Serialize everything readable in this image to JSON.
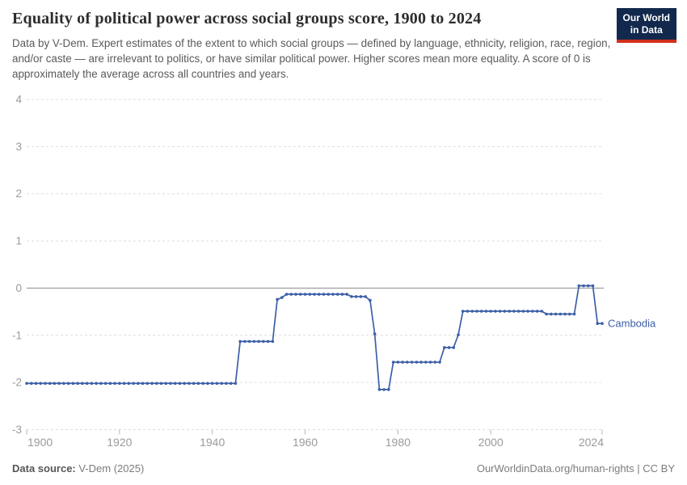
{
  "header": {
    "title": "Equality of political power across social groups score, 1900 to 2024",
    "subtitle": "Data by V-Dem. Expert estimates of the extent to which social groups — defined by language, ethnicity, religion, race, region, and/or caste — are irrelevant to politics, or have similar political power. Higher scores mean more equality. A score of 0 is approximately the average across all countries and years.",
    "logo": {
      "line1": "Our World",
      "line2": "in Data"
    }
  },
  "chart_data": {
    "type": "line",
    "title": "Equality of political power across social groups score, 1900 to 2024",
    "xlabel": "",
    "ylabel": "",
    "xlim": [
      1900,
      2024
    ],
    "ylim": [
      -3,
      4
    ],
    "xticks": [
      1900,
      1920,
      1940,
      1960,
      1980,
      2000,
      2024
    ],
    "yticks": [
      4,
      3,
      2,
      1,
      0,
      -1,
      -2,
      -3
    ],
    "grid": "horizontal dashed gridlines, solid line at 0",
    "legend": "entity label at end of line",
    "line_color": "#3c5fa7",
    "axis_text_color": "#9b9b9b",
    "series": [
      {
        "name": "Cambodia",
        "x_start": 1900,
        "x_step": 1,
        "values": [
          -2.02,
          -2.02,
          -2.02,
          -2.02,
          -2.02,
          -2.02,
          -2.02,
          -2.02,
          -2.02,
          -2.02,
          -2.02,
          -2.02,
          -2.02,
          -2.02,
          -2.02,
          -2.02,
          -2.02,
          -2.02,
          -2.02,
          -2.02,
          -2.02,
          -2.02,
          -2.02,
          -2.02,
          -2.02,
          -2.02,
          -2.02,
          -2.02,
          -2.02,
          -2.02,
          -2.02,
          -2.02,
          -2.02,
          -2.02,
          -2.02,
          -2.02,
          -2.02,
          -2.02,
          -2.02,
          -2.02,
          -2.02,
          -2.02,
          -2.02,
          -2.02,
          -2.02,
          -2.02,
          -1.13,
          -1.13,
          -1.13,
          -1.13,
          -1.13,
          -1.13,
          -1.13,
          -1.13,
          -0.24,
          -0.2,
          -0.13,
          -0.13,
          -0.13,
          -0.13,
          -0.13,
          -0.13,
          -0.13,
          -0.13,
          -0.13,
          -0.13,
          -0.13,
          -0.13,
          -0.13,
          -0.13,
          -0.18,
          -0.18,
          -0.18,
          -0.18,
          -0.26,
          -0.97,
          -2.15,
          -2.15,
          -2.15,
          -1.57,
          -1.57,
          -1.57,
          -1.57,
          -1.57,
          -1.57,
          -1.57,
          -1.57,
          -1.57,
          -1.57,
          -1.57,
          -1.26,
          -1.26,
          -1.26,
          -0.99,
          -0.49,
          -0.49,
          -0.49,
          -0.49,
          -0.49,
          -0.49,
          -0.49,
          -0.49,
          -0.49,
          -0.49,
          -0.49,
          -0.49,
          -0.49,
          -0.49,
          -0.49,
          -0.49,
          -0.49,
          -0.49,
          -0.55,
          -0.55,
          -0.55,
          -0.55,
          -0.55,
          -0.55,
          -0.55,
          0.05,
          0.05,
          0.05,
          0.05,
          -0.75,
          -0.75
        ]
      }
    ]
  },
  "footer": {
    "source_label": "Data source:",
    "source_value": "V-Dem (2025)",
    "credit": "OurWorldinData.org/human-rights | CC BY"
  }
}
